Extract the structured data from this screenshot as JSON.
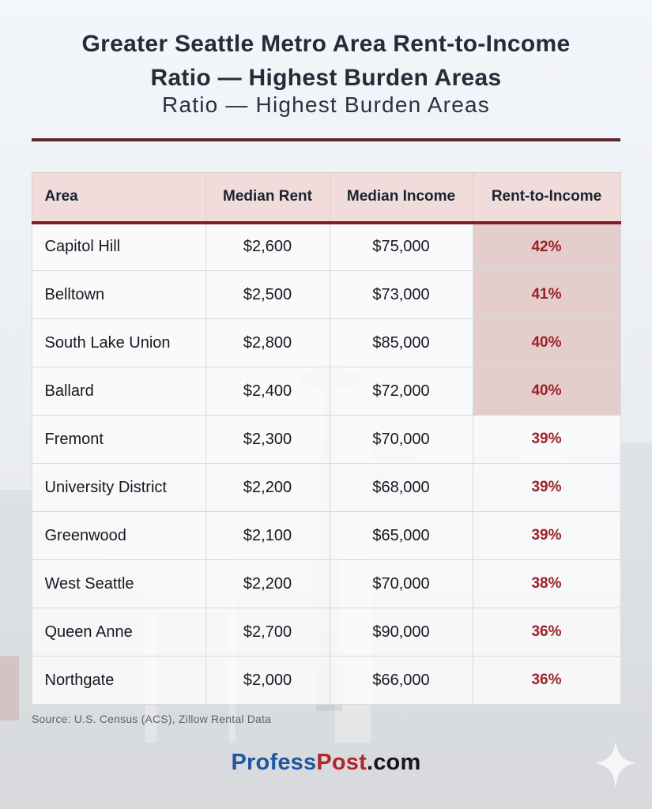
{
  "title": {
    "line1": "Greater Seattle Metro Area Rent-to-Income",
    "line2": "Ratio — Highest Burden Areas",
    "echo": "Ratio — Highest Burden Areas"
  },
  "chart_data": {
    "type": "table",
    "title": "Greater Seattle Metro Area Rent-to-Income Ratio — Highest Burden Areas",
    "columns": [
      "Area",
      "Median Rent",
      "Median Income",
      "Rent-to-Income"
    ],
    "rows": [
      [
        "Capitol Hill",
        "$2,600",
        "$75,000",
        "42%"
      ],
      [
        "Belltown",
        "$2,500",
        "$73,000",
        "41%"
      ],
      [
        "South Lake Union",
        "$2,800",
        "$85,000",
        "40%"
      ],
      [
        "Ballard",
        "$2,400",
        "$72,000",
        "40%"
      ],
      [
        "Fremont",
        "$2,300",
        "$70,000",
        "39%"
      ],
      [
        "University District",
        "$2,200",
        "$68,000",
        "39%"
      ],
      [
        "Greenwood",
        "$2,100",
        "$65,000",
        "39%"
      ],
      [
        "West Seattle",
        "$2,200",
        "$70,000",
        "38%"
      ],
      [
        "Queen Anne",
        "$2,700",
        "$90,000",
        "36%"
      ],
      [
        "Northgate",
        "$2,000",
        "$66,000",
        "36%"
      ]
    ],
    "highlighted_rows": [
      0,
      1,
      2,
      3
    ],
    "ratio_values_percent": [
      42,
      41,
      40,
      40,
      39,
      39,
      39,
      38,
      36,
      36
    ],
    "legend_position": "none",
    "grid": true
  },
  "source_note": "Source: U.S. Census (ACS), Zillow Rental Data",
  "footer": {
    "brand_blue": "Profess",
    "brand_red": "Post",
    "brand_suffix": ".com"
  },
  "colors": {
    "title_text": "#232c39",
    "divider": "#5e242e",
    "header_bg": "#eedbda",
    "header_underline": "#7e1d24",
    "highlight_cell_bg": "#e3cbc9",
    "ratio_text": "#9b2127",
    "cell_border": "#d8d9dc",
    "source_text": "#5d6369",
    "brand_blue": "#1f56a0",
    "brand_red": "#b3242c",
    "brand_dark": "#161616"
  },
  "decor": {
    "background": "faded-seattle-skyline-photo-with-space-needle",
    "sparkle": "four-point-star"
  }
}
